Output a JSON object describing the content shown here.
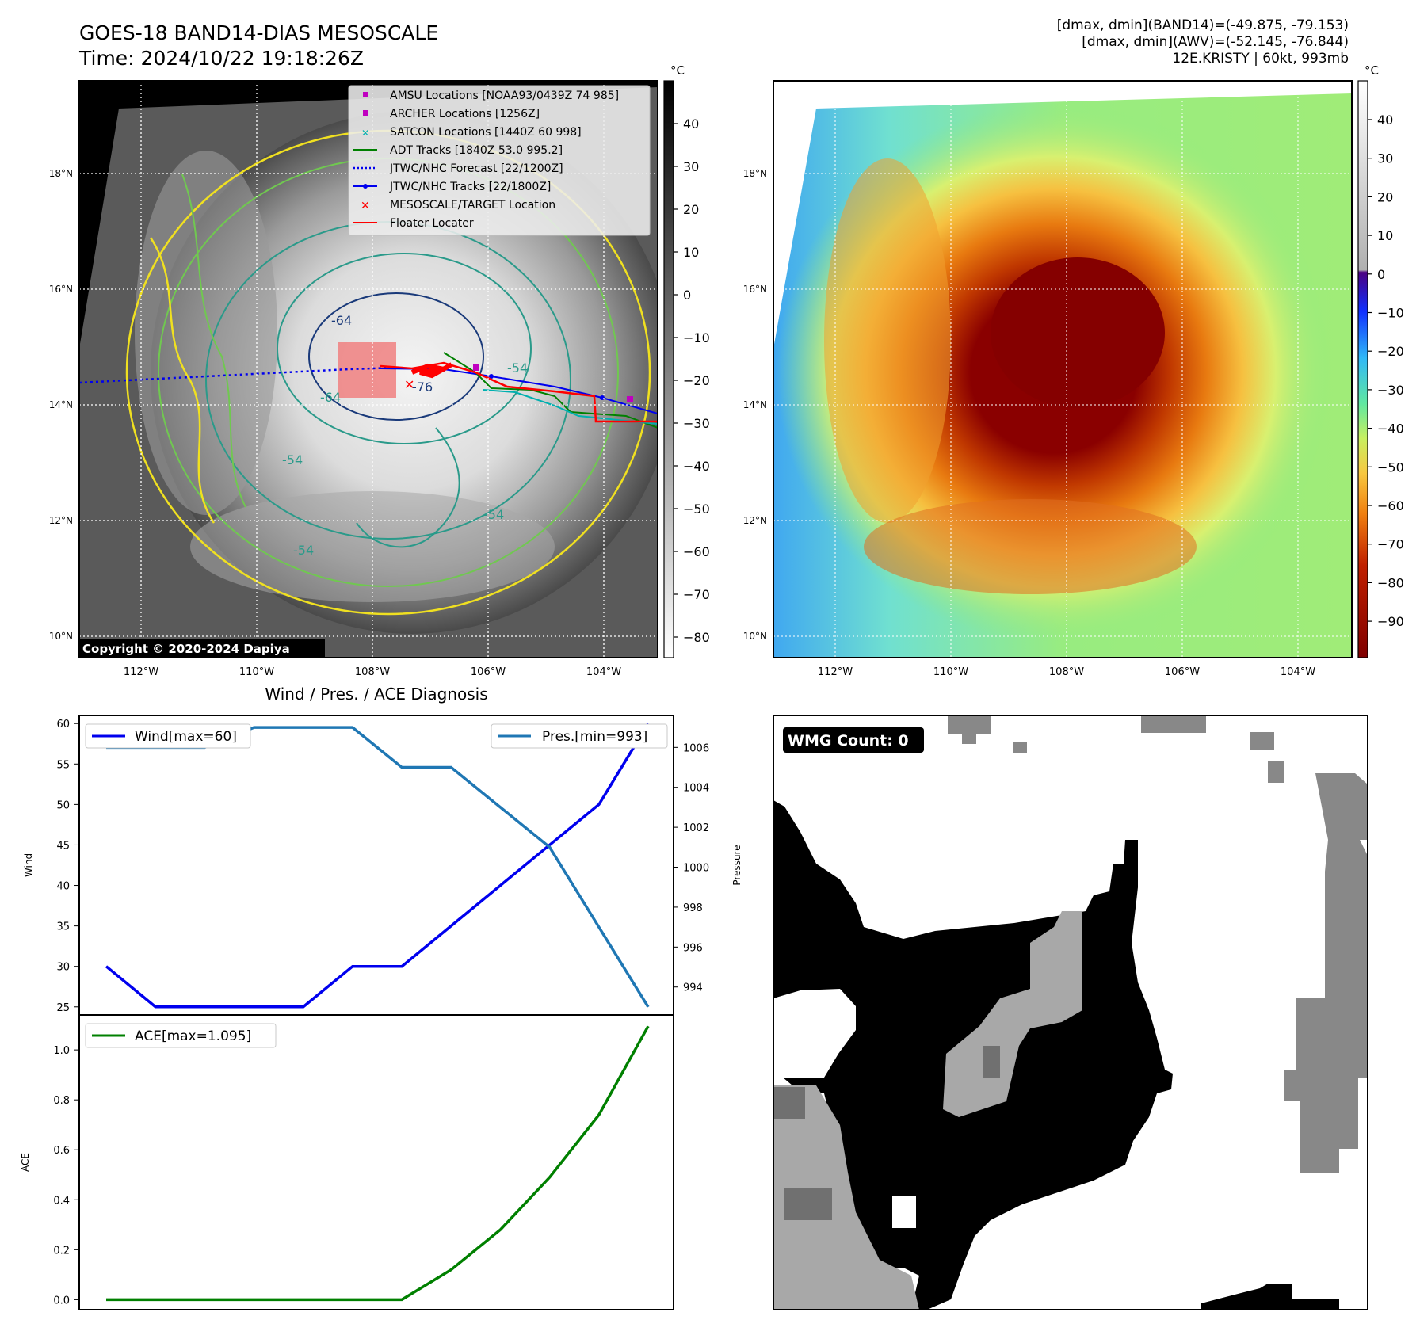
{
  "header": {
    "title": "GOES-18 BAND14-DIAS MESOSCALE",
    "time": "Time: 2024/10/22 19:18:26Z",
    "range_band14": "[dmax, dmin](BAND14)=(-49.875, -79.153)",
    "range_awv": "[dmax, dmin](AWV)=(-52.145, -76.844)",
    "storm": "12E.KRISTY | 60kt, 993mb"
  },
  "maps": {
    "lat_ticks": [
      "18°N",
      "16°N",
      "14°N",
      "12°N",
      "10°N"
    ],
    "lon_ticks": [
      "112°W",
      "110°W",
      "108°W",
      "106°W",
      "104°W"
    ],
    "copyright": "Copyright © 2020-2024 Dapiya",
    "contour_labels": [
      "-64",
      "-64",
      "-54",
      "-54",
      "-54",
      "-76",
      "-54"
    ],
    "colorbar_left": {
      "unit": "°C",
      "ticks": [
        "40",
        "30",
        "20",
        "10",
        "0",
        "−10",
        "−20",
        "−30",
        "−40",
        "−50",
        "−60",
        "−70",
        "−80"
      ]
    },
    "colorbar_right": {
      "unit": "°C",
      "ticks": [
        "40",
        "30",
        "20",
        "10",
        "0",
        "−10",
        "−20",
        "−30",
        "−40",
        "−50",
        "−60",
        "−70",
        "−80",
        "−90"
      ]
    },
    "legend": [
      {
        "label": "AMSU Locations [NOAA93/0439Z 74 985]",
        "color": "#c000c0",
        "marker": "square"
      },
      {
        "label": "ARCHER Locations [1256Z]",
        "color": "#c000c0",
        "marker": "square"
      },
      {
        "label": "SATCON Locations [1440Z 60 998]",
        "color": "#00b0b0",
        "marker": "x"
      },
      {
        "label": "ADT Tracks [1840Z 53.0 995.2]",
        "color": "#008000",
        "marker": "line"
      },
      {
        "label": "JTWC/NHC Forecast [22/1200Z]",
        "color": "#0000ee",
        "marker": "dotted"
      },
      {
        "label": "JTWC/NHC Tracks [22/1800Z]",
        "color": "#0000ee",
        "marker": "line-dot"
      },
      {
        "label": "MESOSCALE/TARGET Location",
        "color": "#ff0000",
        "marker": "x"
      },
      {
        "label": "Floater Locater",
        "color": "#ff0000",
        "marker": "line"
      }
    ]
  },
  "wmg": {
    "count_label": "WMG Count: 0"
  },
  "chart_data": [
    {
      "type": "line",
      "title": "Wind / Pres. / ACE Diagnosis",
      "ylabel": "Wind",
      "ylabel_right": "Pressure",
      "ylim": [
        24,
        61
      ],
      "ylim_right": [
        992.6,
        1007.6
      ],
      "yticks": [
        25,
        30,
        35,
        40,
        45,
        50,
        55,
        60
      ],
      "yticks_right": [
        994,
        996,
        998,
        1000,
        1002,
        1004,
        1006
      ],
      "series": [
        {
          "name": "Wind[max=60]",
          "axis": "left",
          "color": "#0000ee",
          "values": [
            30,
            25,
            25,
            25,
            25,
            30,
            30,
            35,
            40,
            45,
            50,
            60
          ]
        },
        {
          "name": "Pres.[min=993]",
          "axis": "right",
          "color": "#1f77b4",
          "values": [
            1006,
            1006,
            1006,
            1007,
            1007,
            1007,
            1005,
            1005,
            1003,
            1001,
            997,
            993
          ]
        }
      ]
    },
    {
      "type": "line",
      "ylabel": "ACE",
      "ylim": [
        -0.04,
        1.14
      ],
      "yticks": [
        "0.0",
        "0.2",
        "0.4",
        "0.6",
        "0.8",
        "1.0"
      ],
      "series": [
        {
          "name": "ACE[max=1.095]",
          "color": "#008000",
          "values": [
            0,
            0,
            0,
            0,
            0,
            0,
            0,
            0.12,
            0.28,
            0.49,
            0.74,
            1.095
          ]
        }
      ]
    }
  ]
}
